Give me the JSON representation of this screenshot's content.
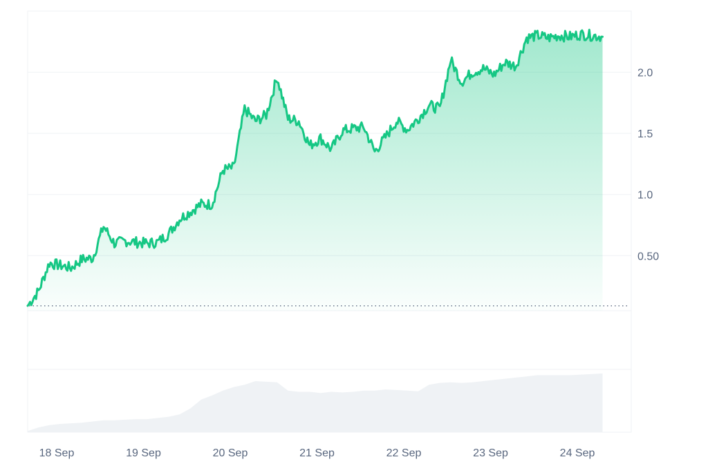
{
  "chart_data": {
    "type": "area",
    "title": "",
    "xlabel": "",
    "ylabel": "",
    "x_ticks": [
      "18 Sep",
      "19 Sep",
      "20 Sep",
      "21 Sep",
      "22 Sep",
      "23 Sep",
      "24 Sep"
    ],
    "y_ticks": [
      "0.50",
      "1.0",
      "1.5",
      "2.0"
    ],
    "ylim": [
      0.05,
      2.5
    ],
    "baseline_value": 0.09,
    "grid": true,
    "colors": {
      "line": "#16c784",
      "area_top": "#16c784",
      "volume": "#eff2f5",
      "grid": "#eff2f5",
      "axis_text": "#58667e"
    },
    "series": [
      {
        "x": [
          "18 Sep 00:00",
          "18 Sep 03:00",
          "18 Sep 06:00",
          "18 Sep 09:00",
          "18 Sep 12:00",
          "18 Sep 15:00",
          "18 Sep 18:00",
          "18 Sep 21:00",
          "19 Sep 00:00",
          "19 Sep 03:00",
          "19 Sep 06:00",
          "19 Sep 09:00",
          "19 Sep 12:00",
          "19 Sep 15:00",
          "19 Sep 18:00",
          "19 Sep 21:00",
          "20 Sep 00:00",
          "20 Sep 03:00",
          "20 Sep 06:00",
          "20 Sep 09:00",
          "20 Sep 12:00",
          "20 Sep 15:00",
          "20 Sep 18:00",
          "20 Sep 21:00",
          "21 Sep 00:00",
          "21 Sep 03:00",
          "21 Sep 06:00",
          "21 Sep 09:00",
          "21 Sep 12:00",
          "21 Sep 15:00",
          "21 Sep 18:00",
          "21 Sep 21:00",
          "22 Sep 00:00",
          "22 Sep 03:00",
          "22 Sep 06:00",
          "22 Sep 09:00",
          "22 Sep 12:00",
          "22 Sep 15:00",
          "22 Sep 18:00",
          "22 Sep 21:00",
          "23 Sep 00:00",
          "23 Sep 03:00",
          "23 Sep 06:00",
          "23 Sep 09:00",
          "23 Sep 12:00",
          "23 Sep 15:00",
          "23 Sep 18:00",
          "23 Sep 21:00",
          "24 Sep 00:00",
          "24 Sep 03:00",
          "24 Sep 06:00",
          "24 Sep 09:00",
          "24 Sep 12:00",
          "24 Sep 15:00"
        ],
        "values": [
          0.09,
          0.21,
          0.44,
          0.42,
          0.4,
          0.47,
          0.48,
          0.74,
          0.6,
          0.62,
          0.61,
          0.6,
          0.61,
          0.68,
          0.8,
          0.86,
          0.92,
          0.92,
          1.2,
          1.22,
          1.7,
          1.6,
          1.65,
          1.96,
          1.62,
          1.6,
          1.4,
          1.46,
          1.37,
          1.52,
          1.54,
          1.55,
          1.35,
          1.47,
          1.6,
          1.53,
          1.62,
          1.73,
          1.7,
          2.1,
          1.92,
          2.0,
          2.03,
          1.98,
          2.08,
          2.05,
          2.28,
          2.3,
          2.28,
          2.3,
          2.29,
          2.31,
          2.3,
          2.29
        ]
      }
    ],
    "volume": {
      "values": [
        0.02,
        0.08,
        0.12,
        0.14,
        0.15,
        0.16,
        0.18,
        0.2,
        0.2,
        0.21,
        0.22,
        0.22,
        0.24,
        0.26,
        0.3,
        0.4,
        0.55,
        0.62,
        0.7,
        0.76,
        0.8,
        0.86,
        0.85,
        0.84,
        0.7,
        0.68,
        0.68,
        0.66,
        0.68,
        0.67,
        0.68,
        0.7,
        0.7,
        0.72,
        0.71,
        0.7,
        0.69,
        0.8,
        0.83,
        0.84,
        0.83,
        0.84,
        0.86,
        0.88,
        0.9,
        0.92,
        0.94,
        0.96,
        0.96,
        0.96,
        0.96,
        0.97,
        0.98,
        0.99
      ]
    }
  }
}
